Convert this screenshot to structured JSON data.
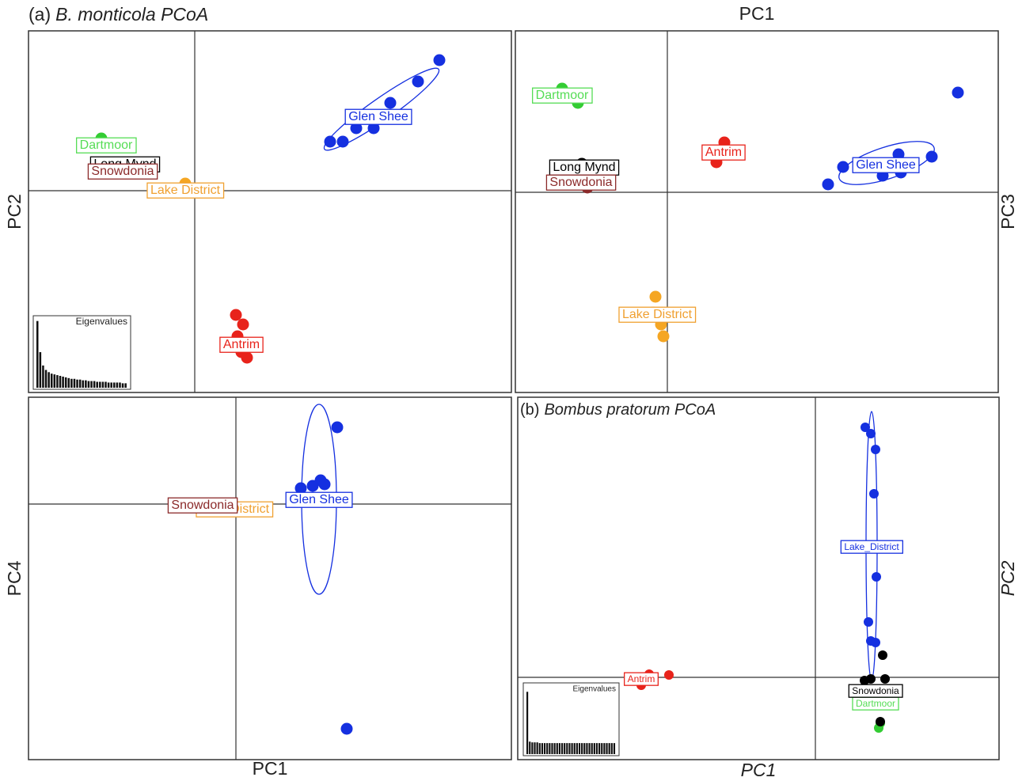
{
  "chart_data": [
    {
      "type": "scatter",
      "panel_label": "(a)",
      "title": "B. monticola PCoA",
      "ylabel": "PC2",
      "xlim": [
        -2.1,
        4.0
      ],
      "ylim": [
        -2.55,
        2.02
      ],
      "groups": [
        {
          "name": "Dartmoor",
          "color": "#33cc33",
          "x": [
            -1.18
          ],
          "y": [
            0.66
          ]
        },
        {
          "name": "Long Mynd",
          "color": "#000000",
          "x": [
            -0.96
          ],
          "y": [
            0.31
          ]
        },
        {
          "name": "Snowdonia",
          "color": "#8b2a2a",
          "x": [
            -0.91
          ],
          "y": [
            0.23
          ]
        },
        {
          "name": "Lake District",
          "color": "#f5a623",
          "x": [
            -0.12,
            -0.1
          ],
          "y": [
            0.09,
            -0.02
          ]
        },
        {
          "name": "Antrim",
          "color": "#e8231b",
          "x": [
            0.52,
            0.61,
            0.54,
            0.66,
            0.59
          ],
          "y": [
            -1.57,
            -1.69,
            -1.84,
            -2.11,
            -2.04
          ]
        },
        {
          "name": "Glen Shee",
          "color": "#1530e0",
          "x": [
            3.09,
            2.82,
            2.47,
            2.04,
            2.26,
            1.87,
            1.71
          ],
          "y": [
            1.65,
            1.38,
            1.11,
            0.79,
            0.79,
            0.62,
            0.62
          ]
        }
      ],
      "eigen": {
        "title": "Eigenvalues",
        "ylim": [
          0,
          95
        ],
        "values": [
          90,
          48,
          30,
          24,
          21,
          19,
          18,
          17,
          16,
          15,
          14,
          13,
          12,
          12,
          11,
          11,
          10,
          10,
          9,
          9,
          9,
          8,
          8,
          8,
          8,
          7,
          7,
          7,
          7,
          7,
          6,
          6
        ]
      }
    },
    {
      "type": "scatter",
      "xlabel": "PC1",
      "ylabel": "PC3",
      "xlim": [
        -1.92,
        4.18
      ],
      "ylim": [
        -2.53,
        2.04
      ],
      "groups": [
        {
          "name": "Dartmoor",
          "color": "#33cc33",
          "x": [
            -1.33,
            -1.13
          ],
          "y": [
            1.31,
            1.13
          ]
        },
        {
          "name": "Long Mynd",
          "color": "#000000",
          "x": [
            -1.08
          ],
          "y": [
            0.36
          ]
        },
        {
          "name": "Snowdonia",
          "color": "#8b2a2a",
          "x": [
            -1.01
          ],
          "y": [
            0.06
          ]
        },
        {
          "name": "Antrim",
          "color": "#e8231b",
          "x": [
            0.72,
            0.62
          ],
          "y": [
            0.63,
            0.38
          ]
        },
        {
          "name": "Glen Shee",
          "color": "#1530e0",
          "x": [
            3.67,
            3.34,
            2.92,
            2.72,
            2.22,
            2.03,
            2.95
          ],
          "y": [
            1.26,
            0.45,
            0.48,
            0.21,
            0.32,
            0.1,
            0.25
          ]
        },
        {
          "name": "Lake District",
          "color": "#f5a623",
          "x": [
            -0.15,
            -0.08,
            -0.05,
            -0.18
          ],
          "y": [
            -1.32,
            -1.67,
            -1.82,
            -1.52
          ]
        }
      ]
    },
    {
      "type": "scatter",
      "xlabel": "PC1",
      "ylabel": "PC4",
      "xlim": [
        -2.62,
        3.48
      ],
      "ylim": [
        -3.23,
        1.35
      ],
      "groups": [
        {
          "name": "Lake District",
          "color": "#f5a623",
          "x": [
            -0.03
          ],
          "y": [
            -0.06
          ]
        },
        {
          "name": "Snowdonia",
          "color": "#8b2a2a",
          "x": [
            -0.43
          ],
          "y": [
            -0.01
          ]
        },
        {
          "name": "Glen Shee",
          "color": "#1530e0",
          "x": [
            1.28,
            1.4,
            1.07,
            0.97,
            0.82,
            1.12
          ],
          "y": [
            0.97,
            -2.84,
            0.3,
            0.23,
            0.2,
            0.25
          ]
        }
      ]
    },
    {
      "type": "scatter",
      "panel_label": "(b)",
      "title": "Bombus pratorum PCoA",
      "xlabel": "PC1",
      "ylabel": "PC2",
      "xlim": [
        -3.76,
        2.32
      ],
      "ylim": [
        -1.04,
        3.54
      ],
      "groups": [
        {
          "name": "Lake_District",
          "color": "#1530e0",
          "x": [
            0.63,
            0.7,
            0.76,
            0.74,
            0.77,
            0.67,
            0.7,
            0.76
          ],
          "y": [
            3.16,
            3.08,
            2.88,
            2.32,
            1.27,
            0.7,
            0.46,
            0.44
          ]
        },
        {
          "name": "Antrim",
          "color": "#e8231b",
          "x": [
            -2.25,
            -2.1,
            -1.85,
            -2.2
          ],
          "y": [
            -0.02,
            0.04,
            0.03,
            -0.1
          ]
        },
        {
          "name": "Dartmoor",
          "color": "#33cc33",
          "x": [
            0.8,
            0.82
          ],
          "y": [
            -0.64,
            -0.58
          ]
        },
        {
          "name": "Snowdonia",
          "color": "#000000",
          "x": [
            0.7,
            0.85,
            0.62,
            0.82,
            0.88
          ],
          "y": [
            -0.02,
            0.28,
            -0.04,
            -0.56,
            -0.02
          ]
        }
      ],
      "eigen": {
        "title": "Eigenvalues",
        "ylim": [
          0,
          95
        ],
        "values": [
          85,
          17,
          16,
          16,
          16,
          15,
          15,
          15,
          15,
          15,
          15,
          15,
          15,
          15,
          15,
          15,
          15,
          15,
          15,
          15,
          15,
          15,
          15,
          15,
          15,
          15,
          15,
          15,
          15,
          15,
          15,
          15,
          15,
          15,
          15,
          15
        ]
      }
    }
  ]
}
